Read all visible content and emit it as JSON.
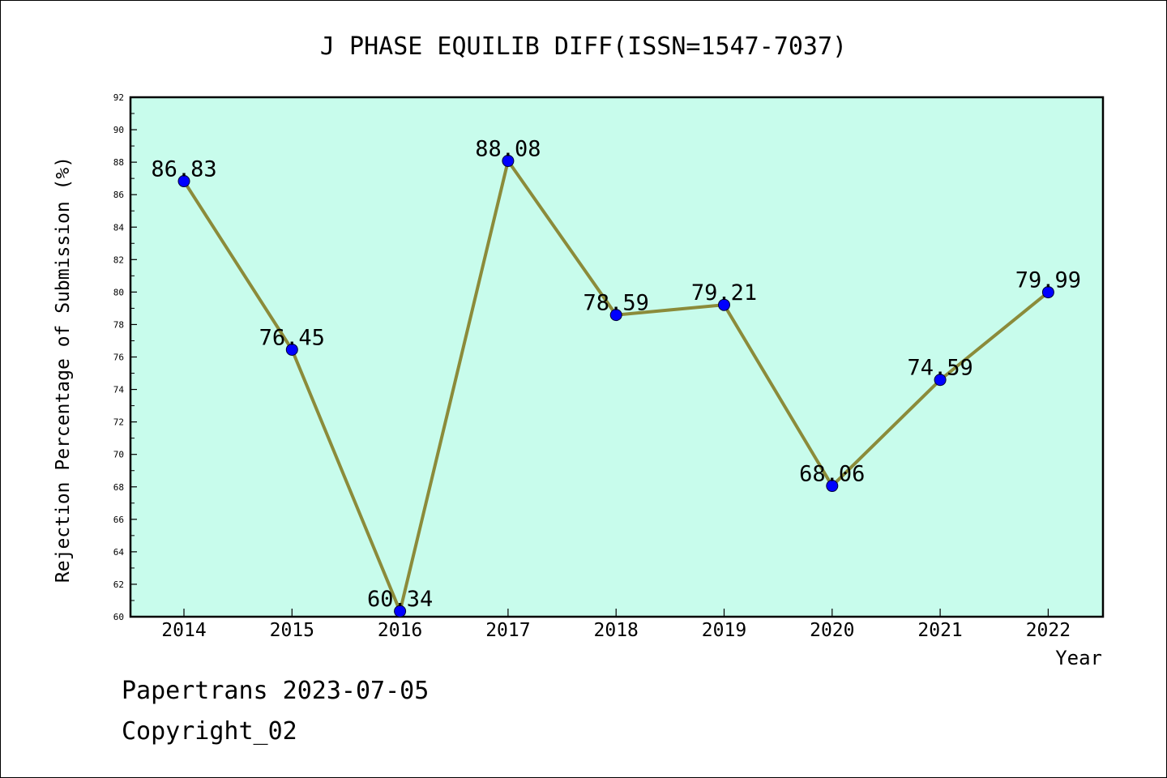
{
  "chart_data": {
    "type": "line",
    "title": "J PHASE EQUILIB DIFF(ISSN=1547-7037)",
    "xlabel": "Year",
    "ylabel": "Rejection Percentage of Submission (%)",
    "categories": [
      "2014",
      "2015",
      "2016",
      "2017",
      "2018",
      "2019",
      "2020",
      "2021",
      "2022"
    ],
    "series": [
      {
        "values": [
          86.83,
          76.45,
          60.34,
          88.08,
          78.59,
          79.21,
          68.06,
          74.59,
          79.99
        ],
        "labels": [
          "86.83",
          "76.45",
          "60.34",
          "88.08",
          "78.59",
          "79.21",
          "68.06",
          "74.59",
          "79.99"
        ],
        "line_color": "#8b8b3a",
        "marker_color": "#0000ff"
      }
    ],
    "ylim": [
      60,
      92
    ],
    "yticks": [
      "60",
      "62",
      "64",
      "66",
      "68",
      "70",
      "72",
      "74",
      "76",
      "78",
      "80",
      "82",
      "84",
      "86",
      "88",
      "90",
      "92"
    ],
    "grid": false,
    "plot_background": "#c8fcec"
  },
  "footer": {
    "line1": "Papertrans 2023-07-05",
    "line2": "Copyright_02"
  }
}
